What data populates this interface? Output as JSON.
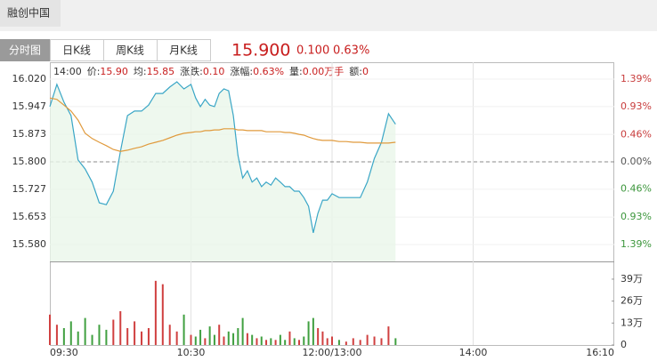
{
  "header": {
    "title": "融创中国"
  },
  "tabs": [
    "分时图",
    "日K线",
    "周K线",
    "月K线"
  ],
  "quote": {
    "price": "15.900",
    "change": "0.100",
    "change_pct": "0.63%"
  },
  "info": [
    {
      "label": "14:00"
    },
    {
      "label": "价:",
      "value": "15.90"
    },
    {
      "label": "均:",
      "value": "15.85"
    },
    {
      "label": "涨跌:",
      "value": "0.10"
    },
    {
      "label": "涨幅:",
      "value": "0.63%"
    },
    {
      "label": "量:",
      "value": "0.00万手"
    },
    {
      "label": "额:",
      "value": "0"
    }
  ],
  "chart_data": [
    {
      "type": "line",
      "x": [
        "09:30",
        "09:33",
        "09:36",
        "09:39",
        "09:42",
        "09:45",
        "09:48",
        "09:51",
        "09:54",
        "09:57",
        "10:00",
        "10:03",
        "10:06",
        "10:09",
        "10:12",
        "10:15",
        "10:18",
        "10:21",
        "10:24",
        "10:27",
        "10:30",
        "10:33",
        "10:36",
        "10:39",
        "10:42",
        "10:45",
        "10:48",
        "10:51",
        "10:54",
        "10:57",
        "11:00",
        "11:03",
        "11:06",
        "11:09",
        "11:12",
        "11:15",
        "11:18",
        "11:21",
        "11:24",
        "11:27",
        "11:30",
        "11:33",
        "11:36",
        "11:39",
        "11:42",
        "11:45",
        "11:48",
        "11:51",
        "11:54",
        "11:57",
        "13:00",
        "13:03",
        "13:06",
        "13:09",
        "13:12",
        "13:15",
        "13:18",
        "13:21",
        "13:24",
        "13:27"
      ],
      "series": [
        {
          "color": "#3aa6c6",
          "values": [
            15.947,
            16.006,
            15.959,
            15.923,
            15.805,
            15.781,
            15.746,
            15.691,
            15.686,
            15.722,
            15.828,
            15.923,
            15.935,
            15.935,
            15.951,
            15.982,
            15.982,
            15.999,
            16.013,
            15.994,
            16.006,
            15.97,
            15.947,
            15.966,
            15.951,
            15.947,
            15.982,
            15.994,
            15.989,
            15.923,
            15.817,
            15.757,
            15.776,
            15.746,
            15.757,
            15.734,
            15.746,
            15.738,
            15.757,
            15.746,
            15.734,
            15.734,
            15.722,
            15.722,
            15.705,
            15.682,
            15.611,
            15.663,
            15.698,
            15.698,
            15.715,
            15.705,
            15.705,
            15.705,
            15.705,
            15.746,
            15.809,
            15.852,
            15.928,
            15.9
          ]
        },
        {
          "color": "#e09a3c",
          "values": [
            15.97,
            15.966,
            15.951,
            15.935,
            15.911,
            15.876,
            15.862,
            15.852,
            15.843,
            15.833,
            15.828,
            15.831,
            15.836,
            15.84,
            15.847,
            15.852,
            15.857,
            15.864,
            15.871,
            15.876,
            15.878,
            15.88,
            15.88,
            15.883,
            15.883,
            15.885,
            15.885,
            15.888,
            15.888,
            15.888,
            15.885,
            15.885,
            15.883,
            15.883,
            15.883,
            15.883,
            15.88,
            15.88,
            15.88,
            15.88,
            15.878,
            15.878,
            15.876,
            15.873,
            15.871,
            15.866,
            15.862,
            15.859,
            15.857,
            15.857,
            15.857,
            15.854,
            15.854,
            15.852,
            15.852,
            15.85,
            15.85,
            15.85,
            15.85,
            15.852
          ]
        }
      ],
      "ylim": [
        15.535,
        16.065
      ],
      "yticks": [
        {
          "value": 16.02,
          "label": "16.020"
        },
        15.947,
        15.873,
        {
          "value": 15.8,
          "label": "15.800"
        },
        15.727,
        15.653,
        {
          "value": 15.58,
          "label": "15.580"
        }
      ],
      "y2lim": [
        -1.6772,
        1.6772
      ],
      "y2ticks": [
        {
          "value": 1.39,
          "label": "1.39%"
        },
        {
          "value": 0.93,
          "label": "0.93%"
        },
        {
          "value": 0.46,
          "label": "0.46%"
        },
        {
          "value": 0,
          "label": "0.00%"
        },
        {
          "value": -0.46,
          "label": "0.46%"
        },
        {
          "value": -0.93,
          "label": "0.93%"
        },
        {
          "value": -1.39,
          "label": "1.39%"
        }
      ],
      "grid": true
    },
    {
      "type": "bar",
      "x": [
        "09:30",
        "09:33",
        "09:36",
        "09:39",
        "09:42",
        "09:45",
        "09:48",
        "09:51",
        "09:54",
        "09:57",
        "10:00",
        "10:03",
        "10:06",
        "10:09",
        "10:12",
        "10:15",
        "10:18",
        "10:21",
        "10:24",
        "10:27",
        "10:30",
        "10:33",
        "10:36",
        "10:39",
        "10:42",
        "10:45",
        "10:48",
        "10:51",
        "10:54",
        "10:57",
        "11:00",
        "11:03",
        "11:06",
        "11:09",
        "11:12",
        "11:15",
        "11:18",
        "11:21",
        "11:24",
        "11:27",
        "11:30",
        "11:33",
        "11:36",
        "11:39",
        "11:42",
        "11:45",
        "11:48",
        "11:51",
        "11:54",
        "11:57",
        "13:00",
        "13:03",
        "13:06",
        "13:09",
        "13:12",
        "13:15",
        "13:18",
        "13:21",
        "13:24",
        "13:27"
      ],
      "values": [
        180000,
        120000,
        100000,
        140000,
        80000,
        160000,
        60000,
        120000,
        90000,
        150000,
        200000,
        100000,
        140000,
        80000,
        100000,
        380000,
        360000,
        120000,
        80000,
        180000,
        60000,
        50000,
        90000,
        40000,
        110000,
        60000,
        120000,
        50000,
        80000,
        70000,
        100000,
        160000,
        70000,
        60000,
        40000,
        50000,
        30000,
        40000,
        30000,
        60000,
        30000,
        80000,
        40000,
        30000,
        50000,
        140000,
        160000,
        100000,
        80000,
        40000,
        50000,
        30000,
        20000,
        40000,
        30000,
        60000,
        50000,
        40000,
        110000,
        40000
      ],
      "ylim": [
        0,
        495000
      ],
      "yticks": [
        {
          "value": 390000,
          "label": "39万"
        },
        {
          "value": 260000,
          "label": "26万"
        },
        {
          "value": 130000,
          "label": "13万"
        },
        0
      ],
      "xticks": [
        "09:30",
        "10:30",
        {
          "value": "12:00",
          "label": "12:00/13:00"
        },
        "14:00",
        "16:10"
      ]
    }
  ]
}
